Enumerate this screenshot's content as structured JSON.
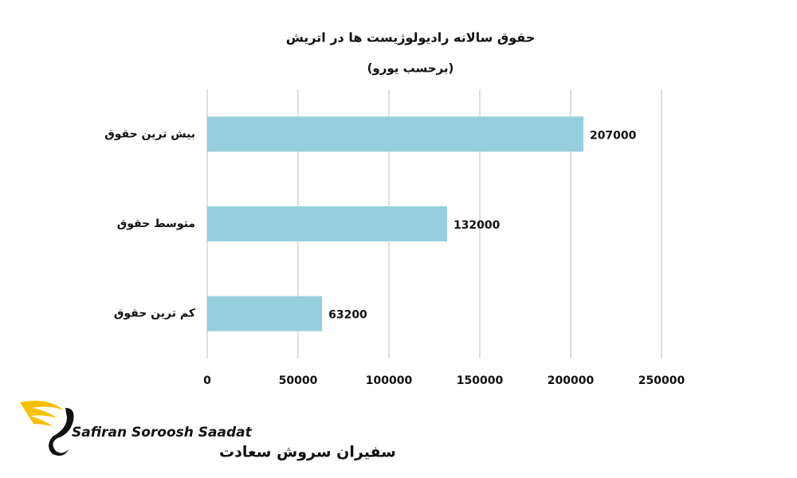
{
  "chart_data": {
    "type": "hbar",
    "title": "حقوق سالانه رادیولوژیست ها در اتریش",
    "subtitle": "(برحسب یورو)",
    "categories": [
      "بیش ترین حقوق",
      "متوسط حقوق",
      "کم ترین حقوق"
    ],
    "values": [
      207000,
      132000,
      63200
    ],
    "color": "#95cfdd",
    "xlim": [
      0,
      250000
    ],
    "xticks": [
      0,
      50000,
      100000,
      150000,
      200000,
      250000
    ],
    "grid": true
  },
  "logo": {
    "latin": "Safiran Soroosh Saadat",
    "persian": "سفیران سروش سعادت"
  }
}
